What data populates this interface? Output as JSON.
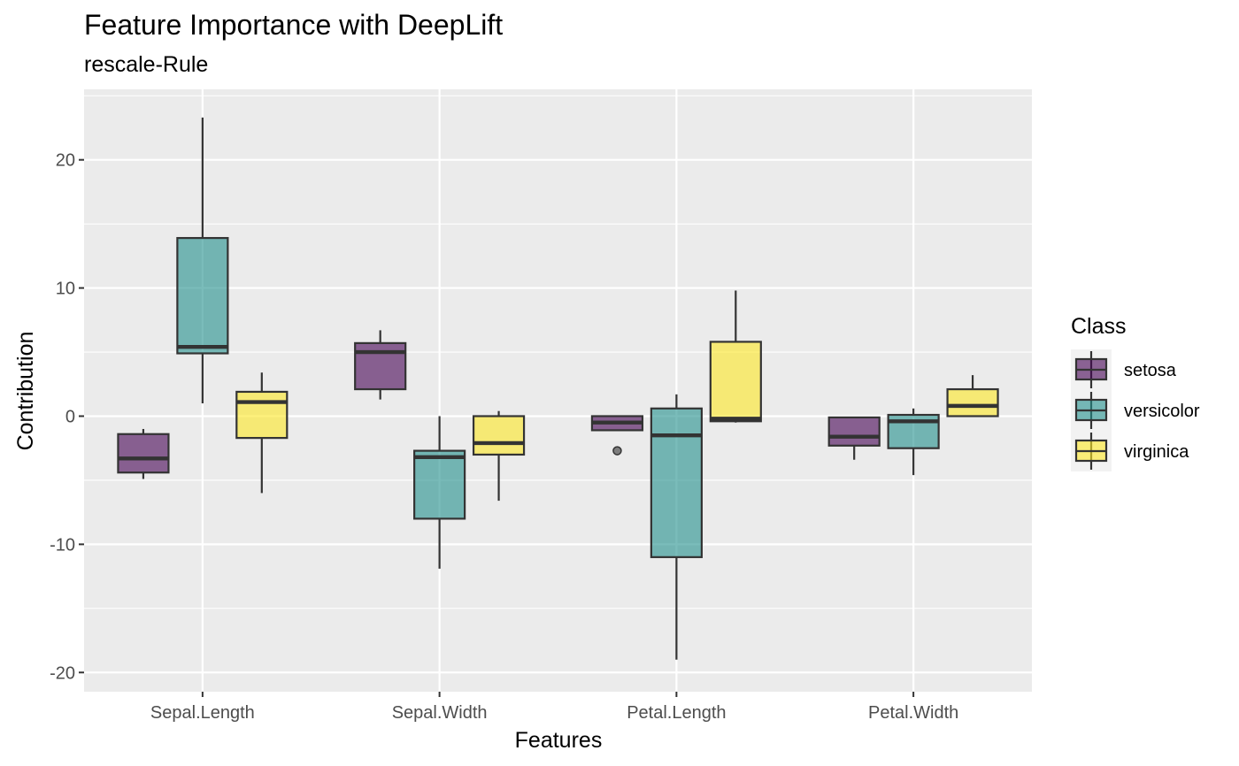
{
  "chart_data": {
    "type": "boxplot",
    "title": "Feature Importance with DeepLift",
    "subtitle": "rescale-Rule",
    "xlabel": "Features",
    "ylabel": "Contribution",
    "ylim": [
      -21.5,
      25.5
    ],
    "yticks": [
      -20,
      -10,
      0,
      10,
      20
    ],
    "categories": [
      "Sepal.Length",
      "Sepal.Width",
      "Petal.Length",
      "Petal.Width"
    ],
    "grid": true,
    "legend": {
      "title": "Class",
      "position": "right"
    },
    "series": [
      {
        "name": "setosa",
        "color": "#440154",
        "boxes": [
          {
            "category": "Sepal.Length",
            "whisker_low": -4.9,
            "q1": -4.4,
            "median": -3.3,
            "q3": -1.4,
            "whisker_high": -1.0,
            "outliers": []
          },
          {
            "category": "Sepal.Width",
            "whisker_low": 1.3,
            "q1": 2.1,
            "median": 5.0,
            "q3": 5.7,
            "whisker_high": 6.7,
            "outliers": []
          },
          {
            "category": "Petal.Length",
            "whisker_low": -1.1,
            "q1": -1.1,
            "median": -0.5,
            "q3": 0.0,
            "whisker_high": 0.0,
            "outliers": [
              -2.7
            ]
          },
          {
            "category": "Petal.Width",
            "whisker_low": -3.4,
            "q1": -2.3,
            "median": -1.6,
            "q3": -0.1,
            "whisker_high": -0.1,
            "outliers": []
          }
        ]
      },
      {
        "name": "versicolor",
        "color": "#21908C",
        "boxes": [
          {
            "category": "Sepal.Length",
            "whisker_low": 1.0,
            "q1": 4.9,
            "median": 5.4,
            "q3": 13.9,
            "whisker_high": 23.3,
            "outliers": []
          },
          {
            "category": "Sepal.Width",
            "whisker_low": -11.9,
            "q1": -8.0,
            "median": -3.2,
            "q3": -2.7,
            "whisker_high": 0.0,
            "outliers": []
          },
          {
            "category": "Petal.Length",
            "whisker_low": -19.0,
            "q1": -11.0,
            "median": -1.5,
            "q3": 0.6,
            "whisker_high": 1.7,
            "outliers": []
          },
          {
            "category": "Petal.Width",
            "whisker_low": -4.6,
            "q1": -2.5,
            "median": -0.4,
            "q3": 0.1,
            "whisker_high": 0.6,
            "outliers": []
          }
        ]
      },
      {
        "name": "virginica",
        "color": "#FDE725",
        "boxes": [
          {
            "category": "Sepal.Length",
            "whisker_low": -6.0,
            "q1": -1.7,
            "median": 1.1,
            "q3": 1.9,
            "whisker_high": 3.4,
            "outliers": []
          },
          {
            "category": "Sepal.Width",
            "whisker_low": -6.6,
            "q1": -3.0,
            "median": -2.1,
            "q3": 0.0,
            "whisker_high": 0.4,
            "outliers": []
          },
          {
            "category": "Petal.Length",
            "whisker_low": -0.5,
            "q1": -0.4,
            "median": -0.2,
            "q3": 5.8,
            "whisker_high": 9.8,
            "outliers": []
          },
          {
            "category": "Petal.Width",
            "whisker_low": 0.0,
            "q1": 0.0,
            "median": 0.8,
            "q3": 2.1,
            "whisker_high": 3.2,
            "outliers": []
          }
        ]
      }
    ]
  }
}
